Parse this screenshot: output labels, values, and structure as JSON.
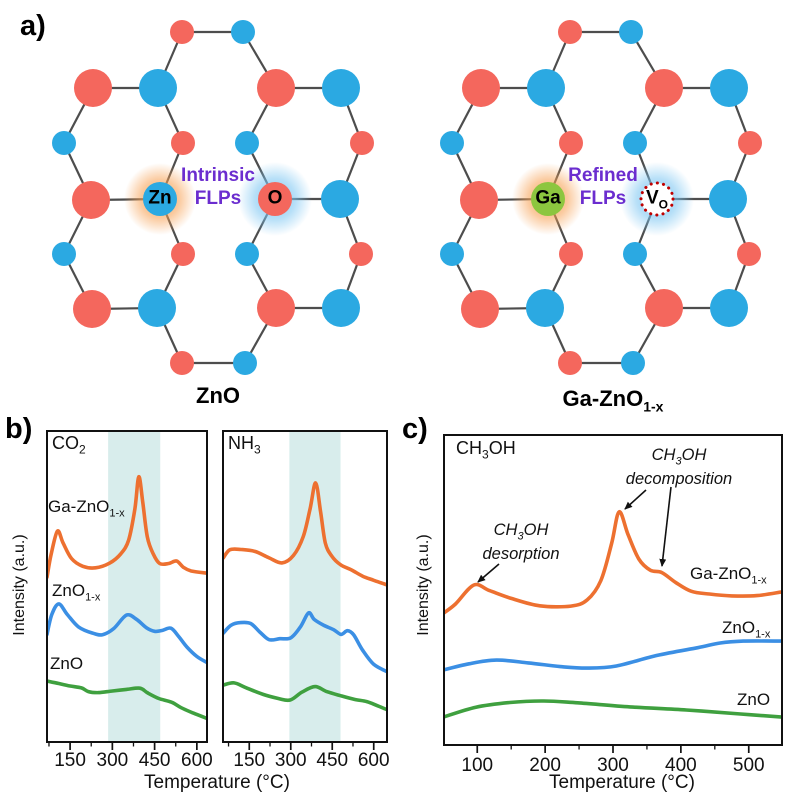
{
  "colors": {
    "red_atom": "#f4675d",
    "blue_atom": "#2ba9e2",
    "green_atom": "#8cc63f",
    "purple_text": "#6b2dcf",
    "vacancy_ring": "#c00000",
    "bond": "#4d4d4d",
    "band": "#d8edec",
    "orange_curve": "#ed7030",
    "blue_curve": "#3b8fe4",
    "green_curve": "#3fa03f",
    "orange_glow": "#f7a154",
    "blue_glow": "#7cc6f2",
    "axis": "#111111"
  },
  "panel_a": {
    "label": "a)",
    "left": {
      "cation": "Zn",
      "anion": "O",
      "flp_line1": "Intrinsic",
      "flp_line2": "FLPs",
      "caption_main": "ZnO",
      "caption_sub": ""
    },
    "right": {
      "cation": "Ga",
      "anion_main": "V",
      "anion_sub": "O",
      "flp_line1": "Refined",
      "flp_line2": "FLPs",
      "caption_main": "Ga-ZnO",
      "caption_sub": "1-x"
    }
  },
  "panel_b": {
    "label": "b)",
    "ylabel": "Intensity (a.u.)",
    "xlabel": "Temperature (°C)",
    "left_gas": {
      "main": "CO",
      "sub": "2"
    },
    "right_gas": {
      "main": "NH",
      "sub": "3"
    },
    "curve_labels": [
      {
        "main": "Ga-ZnO",
        "sub": "1-x"
      },
      {
        "main": "ZnO",
        "sub": "1-x"
      },
      {
        "main": "ZnO",
        "sub": ""
      }
    ]
  },
  "panel_c": {
    "label": "c)",
    "ylabel": "Intensity (a.u.)",
    "xlabel": "Temperature (°C)",
    "gas": {
      "pre": "CH",
      "sub": "3",
      "post": "OH"
    },
    "annotation_desorption": {
      "pre": "CH",
      "sub": "3",
      "post": "OH",
      "line2": "desorption"
    },
    "annotation_decomposition": {
      "pre": "CH",
      "sub": "3",
      "post": "OH",
      "line2": "decomposition"
    },
    "curve_labels": [
      {
        "main": "Ga-ZnO",
        "sub": "1-x"
      },
      {
        "main": "ZnO",
        "sub": "1-x"
      },
      {
        "main": "ZnO",
        "sub": ""
      }
    ]
  },
  "chart_data": [
    {
      "id": "co2",
      "type": "line",
      "title": "CO2 temperature-programmed desorption",
      "xlabel": "Temperature (°C)",
      "ylabel": "Intensity (a.u.)",
      "xlim": [
        68,
        636
      ],
      "ylim": [
        0,
        100
      ],
      "x_ticks": [
        150,
        300,
        450,
        600
      ],
      "x_minor_ticks": [
        75,
        225,
        375,
        525
      ],
      "grid": false,
      "legend_position": "inline-left",
      "band": [
        285,
        470
      ],
      "series": [
        {
          "name": "Ga-ZnO1-x",
          "color_key": "orange_curve",
          "points": [
            [
              68,
              53
            ],
            [
              82,
              60
            ],
            [
              105,
              67.8
            ],
            [
              125,
              64
            ],
            [
              155,
              59
            ],
            [
              195,
              56.5
            ],
            [
              240,
              56
            ],
            [
              290,
              57.5
            ],
            [
              330,
              60.5
            ],
            [
              358,
              65
            ],
            [
              380,
              75
            ],
            [
              394,
              85.3
            ],
            [
              408,
              77
            ],
            [
              424,
              66
            ],
            [
              445,
              60.5
            ],
            [
              468,
              57.4
            ],
            [
              500,
              57.4
            ],
            [
              528,
              58.2
            ],
            [
              552,
              56.2
            ],
            [
              580,
              55
            ],
            [
              635,
              54.3
            ]
          ]
        },
        {
          "name": "ZnO1-x",
          "color_key": "blue_curve",
          "points": [
            [
              68,
              34.6
            ],
            [
              85,
              41
            ],
            [
              110,
              44.4
            ],
            [
              140,
              41
            ],
            [
              180,
              37
            ],
            [
              230,
              35
            ],
            [
              265,
              34.5
            ],
            [
              305,
              36.5
            ],
            [
              350,
              40.8
            ],
            [
              385,
              39.5
            ],
            [
              420,
              36.8
            ],
            [
              450,
              35.6
            ],
            [
              478,
              35.9
            ],
            [
              508,
              36.6
            ],
            [
              535,
              34
            ],
            [
              565,
              30.5
            ],
            [
              600,
              27.5
            ],
            [
              635,
              25.6
            ]
          ]
        },
        {
          "name": "ZnO",
          "color_key": "green_curve",
          "points": [
            [
              68,
              19.6
            ],
            [
              110,
              18.8
            ],
            [
              150,
              18
            ],
            [
              190,
              17.4
            ],
            [
              215,
              16.2
            ],
            [
              250,
              15.9
            ],
            [
              300,
              16.4
            ],
            [
              350,
              16.9
            ],
            [
              398,
              17.3
            ],
            [
              425,
              15.8
            ],
            [
              465,
              14
            ],
            [
              510,
              12.8
            ],
            [
              545,
              11
            ],
            [
              585,
              9.4
            ],
            [
              635,
              7.6
            ]
          ]
        }
      ]
    },
    {
      "id": "nh3",
      "type": "line",
      "title": "NH3 temperature-programmed desorption",
      "xlabel": "Temperature (°C)",
      "ylabel": "Intensity (a.u.)",
      "xlim": [
        55,
        648
      ],
      "ylim": [
        0,
        100
      ],
      "x_ticks": [
        150,
        300,
        450,
        600
      ],
      "x_minor_ticks": [
        75,
        225,
        375,
        525
      ],
      "grid": false,
      "legend_position": "none",
      "band": [
        295,
        480
      ],
      "series": [
        {
          "name": "Ga-ZnO1-x",
          "color_key": "orange_curve",
          "points": [
            [
              56,
              59.2
            ],
            [
              80,
              61.8
            ],
            [
              120,
              61.9
            ],
            [
              170,
              61.3
            ],
            [
              220,
              59.3
            ],
            [
              268,
              57.6
            ],
            [
              310,
              60
            ],
            [
              345,
              66
            ],
            [
              370,
              75
            ],
            [
              390,
              83.3
            ],
            [
              408,
              74
            ],
            [
              425,
              64
            ],
            [
              448,
              59.8
            ],
            [
              480,
              57
            ],
            [
              520,
              55.3
            ],
            [
              560,
              53.3
            ],
            [
              600,
              52
            ],
            [
              648,
              50.5
            ]
          ]
        },
        {
          "name": "ZnO1-x",
          "color_key": "blue_curve",
          "points": [
            [
              56,
              35
            ],
            [
              85,
              37.6
            ],
            [
              118,
              38.4
            ],
            [
              155,
              38.1
            ],
            [
              190,
              35.2
            ],
            [
              222,
              32.9
            ],
            [
              260,
              33.2
            ],
            [
              300,
              33.5
            ],
            [
              335,
              37
            ],
            [
              364,
              41.5
            ],
            [
              385,
              39.4
            ],
            [
              420,
              37.5
            ],
            [
              455,
              36.1
            ],
            [
              482,
              34.6
            ],
            [
              505,
              35.8
            ],
            [
              528,
              34.4
            ],
            [
              560,
              29.5
            ],
            [
              600,
              25
            ],
            [
              648,
              22.6
            ]
          ]
        },
        {
          "name": "ZnO",
          "color_key": "green_curve",
          "points": [
            [
              56,
              18.3
            ],
            [
              95,
              19
            ],
            [
              140,
              17.4
            ],
            [
              200,
              15.3
            ],
            [
              255,
              14
            ],
            [
              298,
              13.5
            ],
            [
              340,
              16
            ],
            [
              388,
              17.8
            ],
            [
              430,
              16.2
            ],
            [
              480,
              14.9
            ],
            [
              530,
              13.7
            ],
            [
              575,
              13
            ],
            [
              615,
              11.6
            ],
            [
              648,
              10.4
            ]
          ]
        }
      ]
    },
    {
      "id": "ch3oh",
      "type": "line",
      "title": "CH3OH temperature-programmed surface reaction",
      "xlabel": "Temperature (°C)",
      "ylabel": "Intensity (a.u.)",
      "xlim": [
        51,
        549
      ],
      "ylim": [
        0,
        100
      ],
      "x_ticks": [
        100,
        200,
        300,
        400,
        500
      ],
      "x_minor_ticks": [
        50,
        150,
        250,
        350,
        450,
        550
      ],
      "grid": false,
      "legend_position": "inline-right",
      "band": null,
      "annotations": [
        "CH3OH desorption (peak ~95 °C)",
        "CH3OH decomposition (peak ~310 °C, shoulder ~370 °C)"
      ],
      "series": [
        {
          "name": "Ga-ZnO1-x",
          "color_key": "orange_curve",
          "points": [
            [
              50,
              42.5
            ],
            [
              68,
              45.5
            ],
            [
              95,
              51.6
            ],
            [
              118,
              49.8
            ],
            [
              150,
              47.3
            ],
            [
              192,
              44.9
            ],
            [
              238,
              44.8
            ],
            [
              262,
              46.8
            ],
            [
              282,
              53
            ],
            [
              298,
              65
            ],
            [
              309,
              75.2
            ],
            [
              322,
              68
            ],
            [
              338,
              60
            ],
            [
              355,
              56.4
            ],
            [
              372,
              55.6
            ],
            [
              392,
              52.5
            ],
            [
              415,
              49.6
            ],
            [
              442,
              48.7
            ],
            [
              475,
              48.1
            ],
            [
              512,
              48.2
            ],
            [
              549,
              49.4
            ]
          ]
        },
        {
          "name": "ZnO1-x",
          "color_key": "blue_curve",
          "points": [
            [
              50,
              24.2
            ],
            [
              88,
              26.2
            ],
            [
              128,
              27.4
            ],
            [
              175,
              26.5
            ],
            [
              222,
              25.3
            ],
            [
              262,
              24.8
            ],
            [
              305,
              25.5
            ],
            [
              365,
              28.9
            ],
            [
              425,
              31.4
            ],
            [
              458,
              32.9
            ],
            [
              492,
              33.5
            ],
            [
              549,
              33.5
            ]
          ]
        },
        {
          "name": "ZnO",
          "color_key": "green_curve",
          "points": [
            [
              50,
              9
            ],
            [
              98,
              12.2
            ],
            [
              148,
              13.7
            ],
            [
              198,
              14.2
            ],
            [
              248,
              13.6
            ],
            [
              325,
              12.3
            ],
            [
              408,
              11.3
            ],
            [
              488,
              10
            ],
            [
              549,
              9
            ]
          ]
        }
      ]
    }
  ]
}
